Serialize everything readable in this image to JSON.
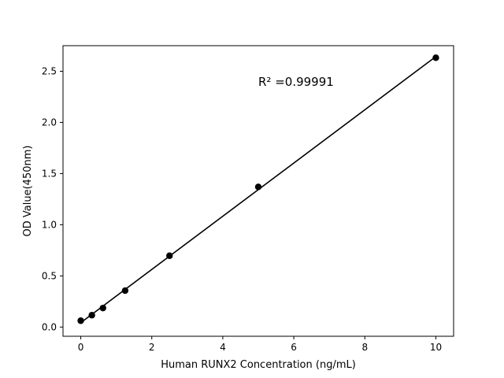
{
  "chart_data": {
    "type": "scatter",
    "title": "",
    "xlabel": "Human RUNX2 Concentration (ng/mL)",
    "ylabel": "OD Value(450nm)",
    "xlim": [
      -0.5,
      10.5
    ],
    "ylim": [
      -0.09,
      2.75
    ],
    "xticks": [
      0,
      2,
      4,
      6,
      8,
      10
    ],
    "xtick_labels": [
      "0",
      "2",
      "4",
      "6",
      "8",
      "10"
    ],
    "yticks": [
      0.0,
      0.5,
      1.0,
      1.5,
      2.0,
      2.5
    ],
    "ytick_labels": [
      "0.0",
      "0.5",
      "1.0",
      "1.5",
      "2.0",
      "2.5"
    ],
    "grid": false,
    "series": [
      {
        "x": [
          0,
          0.3125,
          0.625,
          1.25,
          2.5,
          5,
          10
        ],
        "y": [
          0.062,
          0.116,
          0.186,
          0.356,
          0.697,
          1.37,
          2.632
        ],
        "color": "#000000",
        "marker": "circle",
        "fit_line": "linear"
      }
    ],
    "annotation": "R² =0.99991"
  }
}
